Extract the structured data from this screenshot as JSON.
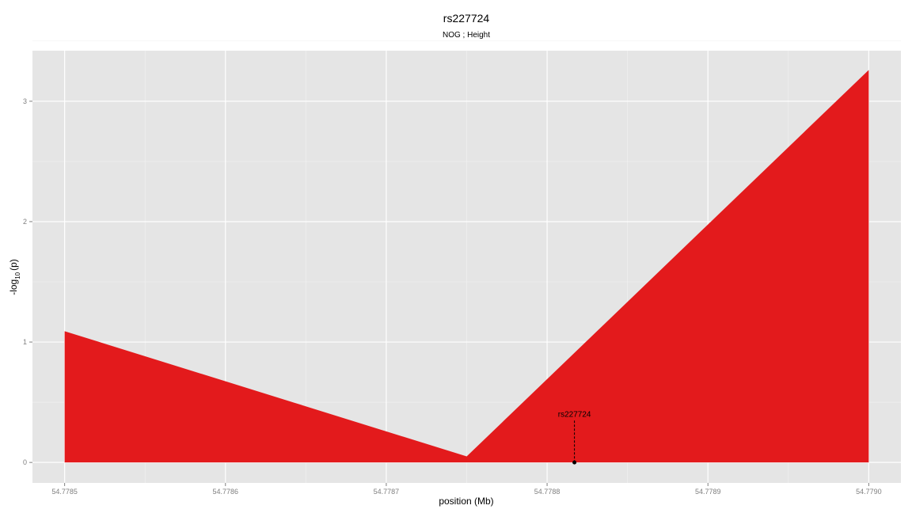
{
  "chart_data": {
    "type": "area",
    "title": "rs227724",
    "subtitle": "NOG ; Height",
    "xlabel": "position (Mb)",
    "ylabel_base": "-log",
    "ylabel_sub": "10",
    "ylabel_tail": "(p)",
    "xlim": [
      54.77848,
      54.77902
    ],
    "ylim": [
      -0.17,
      3.42
    ],
    "x_ticks": [
      {
        "value": 54.7785,
        "label": "54.7785"
      },
      {
        "value": 54.7786,
        "label": "54.7786"
      },
      {
        "value": 54.7787,
        "label": "54.7787"
      },
      {
        "value": 54.7788,
        "label": "54.7788"
      },
      {
        "value": 54.7789,
        "label": "54.7789"
      },
      {
        "value": 54.779,
        "label": "54.7790"
      }
    ],
    "y_ticks": [
      {
        "value": 0,
        "label": "0"
      },
      {
        "value": 1,
        "label": "1"
      },
      {
        "value": 2,
        "label": "2"
      },
      {
        "value": 3,
        "label": "3"
      }
    ],
    "series": [
      {
        "color": "#e31a1c",
        "x": [
          54.7785,
          54.77875,
          54.779
        ],
        "y": [
          1.09,
          0.05,
          3.26
        ]
      }
    ],
    "annotation": {
      "label": "rs227724",
      "x": 54.778817,
      "y": 0,
      "label_y": 0.4
    },
    "grid": true,
    "background": "#e5e5e5"
  }
}
